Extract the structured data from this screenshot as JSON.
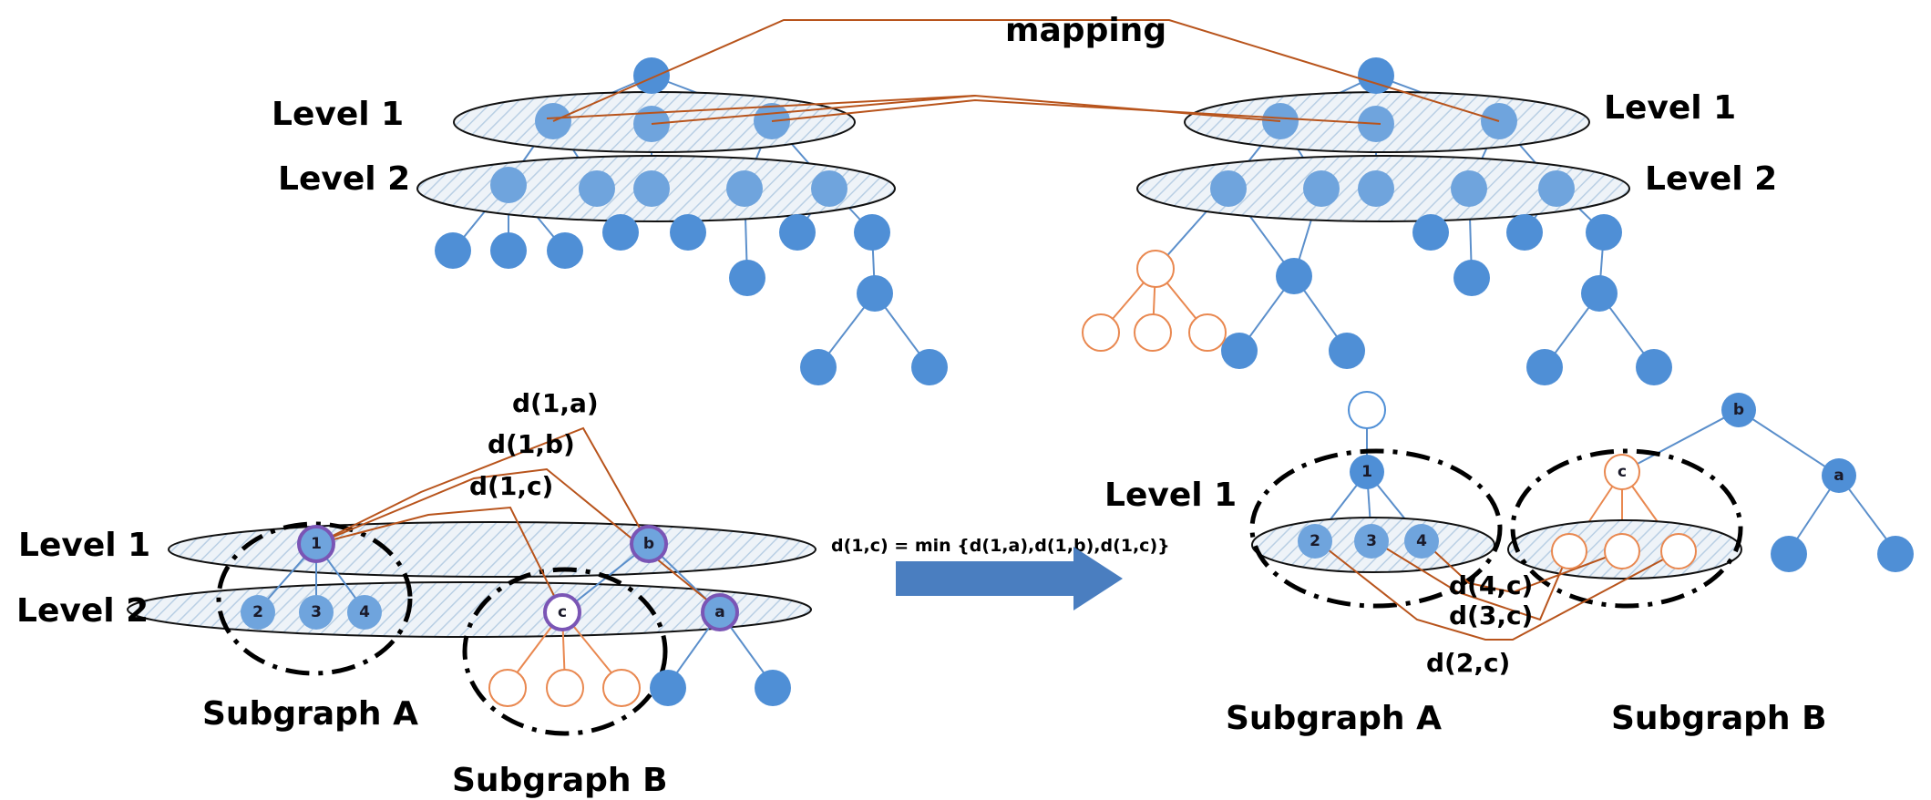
{
  "labels": {
    "mapping": "mapping",
    "level1": "Level 1",
    "level2": "Level 2",
    "subgraph_a": "Subgraph A",
    "subgraph_b": "Subgraph B",
    "formula": "d(1,c) =  min {d(1,a),d(1,b),d(1,c)}",
    "d1a": "d(1,a)",
    "d1b": "d(1,b)",
    "d1c": "d(1,c)",
    "d4c": "d(4,c)",
    "d3c": "d(3,c)",
    "d2c": "d(2,c)"
  },
  "node_labels": {
    "n1": "1",
    "n2": "2",
    "n3": "3",
    "n4": "4",
    "b": "b",
    "c": "c",
    "a": "a"
  },
  "colors": {
    "node_fill": "#4f8fd6",
    "edge": "#5b8fcb",
    "subtree_outline": "#e98850",
    "mapping_line": "#b8541c",
    "highlight_ring": "#7a55b5",
    "arrow": "#4a7ec0"
  }
}
